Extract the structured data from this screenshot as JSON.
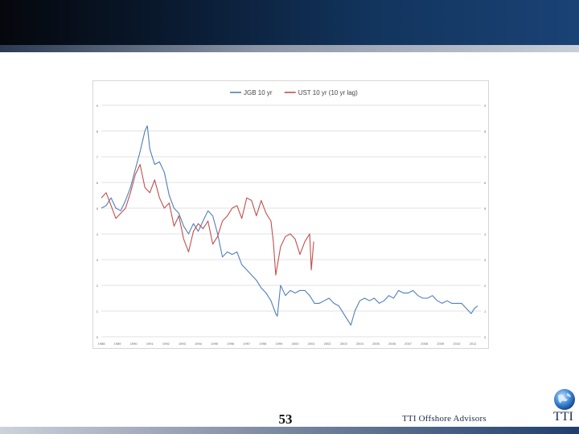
{
  "slide": {
    "page_number": "53",
    "footer_brand": "TTI Offshore Advisors",
    "corner_mark": "TTI"
  },
  "colors": {
    "jgb": "#4f7fba",
    "ust": "#c0504d",
    "grid": "#d9d9d9"
  },
  "chart_data": {
    "type": "line",
    "title": "",
    "xlabel": "",
    "ylabel": "",
    "xlim": [
      1988,
      2011.5
    ],
    "ylim": [
      0,
      9
    ],
    "y_ticks": [
      "0",
      "1",
      "2",
      "3",
      "4",
      "5",
      "6",
      "7",
      "8",
      "9"
    ],
    "x_ticks": [
      "1988",
      "1989",
      "1990",
      "1991",
      "1992",
      "1993",
      "1994",
      "1995",
      "1996",
      "1997",
      "1998",
      "1999",
      "2000",
      "2001",
      "2002",
      "2003",
      "2004",
      "2005",
      "2006",
      "2007",
      "2008",
      "2009",
      "2010",
      "2011"
    ],
    "grid": true,
    "legend_position": "top",
    "series": [
      {
        "name": "JGB 10 yr",
        "color": "#4f7fba",
        "x": [
          1988.0,
          1988.3,
          1988.6,
          1988.9,
          1989.2,
          1989.5,
          1989.8,
          1990.1,
          1990.4,
          1990.7,
          1990.85,
          1991.0,
          1991.3,
          1991.6,
          1991.9,
          1992.2,
          1992.5,
          1992.8,
          1993.1,
          1993.4,
          1993.7,
          1994.0,
          1994.3,
          1994.6,
          1994.9,
          1995.2,
          1995.5,
          1995.8,
          1996.1,
          1996.4,
          1996.7,
          1997.0,
          1997.3,
          1997.6,
          1997.9,
          1998.2,
          1998.5,
          1998.8,
          1998.9,
          1999.1,
          1999.4,
          1999.7,
          2000.0,
          2000.3,
          2000.6,
          2000.9,
          2001.2,
          2001.5,
          2001.8,
          2002.1,
          2002.4,
          2002.7,
          2003.0,
          2003.3,
          2003.45,
          2003.7,
          2004.0,
          2004.3,
          2004.6,
          2004.9,
          2005.2,
          2005.5,
          2005.8,
          2006.1,
          2006.4,
          2006.7,
          2007.0,
          2007.3,
          2007.6,
          2007.9,
          2008.2,
          2008.5,
          2008.8,
          2009.1,
          2009.4,
          2009.7,
          2010.0,
          2010.3,
          2010.6,
          2010.9,
          2011.1,
          2011.3
        ],
        "values": [
          5.0,
          5.1,
          5.4,
          5.0,
          4.9,
          5.3,
          5.8,
          6.5,
          7.2,
          8.0,
          8.2,
          7.3,
          6.7,
          6.8,
          6.4,
          5.5,
          5.0,
          4.8,
          4.3,
          4.0,
          4.4,
          4.1,
          4.5,
          4.9,
          4.7,
          4.0,
          3.1,
          3.3,
          3.2,
          3.3,
          2.8,
          2.6,
          2.4,
          2.2,
          1.9,
          1.7,
          1.4,
          0.9,
          0.8,
          2.0,
          1.6,
          1.8,
          1.7,
          1.8,
          1.8,
          1.6,
          1.3,
          1.3,
          1.4,
          1.5,
          1.3,
          1.2,
          0.9,
          0.6,
          0.45,
          1.0,
          1.4,
          1.5,
          1.4,
          1.5,
          1.3,
          1.4,
          1.6,
          1.5,
          1.8,
          1.7,
          1.7,
          1.8,
          1.6,
          1.5,
          1.5,
          1.6,
          1.4,
          1.3,
          1.4,
          1.3,
          1.3,
          1.3,
          1.1,
          0.9,
          1.1,
          1.2
        ]
      },
      {
        "name": "UST 10 yr (10 yr lag)",
        "color": "#c0504d",
        "x": [
          1988.0,
          1988.3,
          1988.6,
          1988.9,
          1989.2,
          1989.5,
          1989.8,
          1990.1,
          1990.4,
          1990.7,
          1991.0,
          1991.3,
          1991.6,
          1991.9,
          1992.2,
          1992.5,
          1992.8,
          1993.1,
          1993.4,
          1993.7,
          1994.0,
          1994.3,
          1994.6,
          1994.9,
          1995.2,
          1995.5,
          1995.8,
          1996.1,
          1996.4,
          1996.7,
          1997.0,
          1997.3,
          1997.6,
          1997.9,
          1998.2,
          1998.5,
          1998.65,
          1998.8,
          1999.1,
          1999.4,
          1999.7,
          2000.0,
          2000.3,
          2000.6,
          2000.9,
          2001.0,
          2001.15
        ],
        "values": [
          5.4,
          5.6,
          5.1,
          4.6,
          4.8,
          5.0,
          5.6,
          6.3,
          6.7,
          5.8,
          5.6,
          6.1,
          5.4,
          5.0,
          5.2,
          4.3,
          4.7,
          3.8,
          3.3,
          4.1,
          4.4,
          4.2,
          4.5,
          3.6,
          3.9,
          4.5,
          4.7,
          5.0,
          5.1,
          4.6,
          5.4,
          5.3,
          4.7,
          5.3,
          4.8,
          4.5,
          3.7,
          2.4,
          3.5,
          3.9,
          4.0,
          3.8,
          3.2,
          3.7,
          4.0,
          2.6,
          3.7
        ]
      }
    ]
  }
}
